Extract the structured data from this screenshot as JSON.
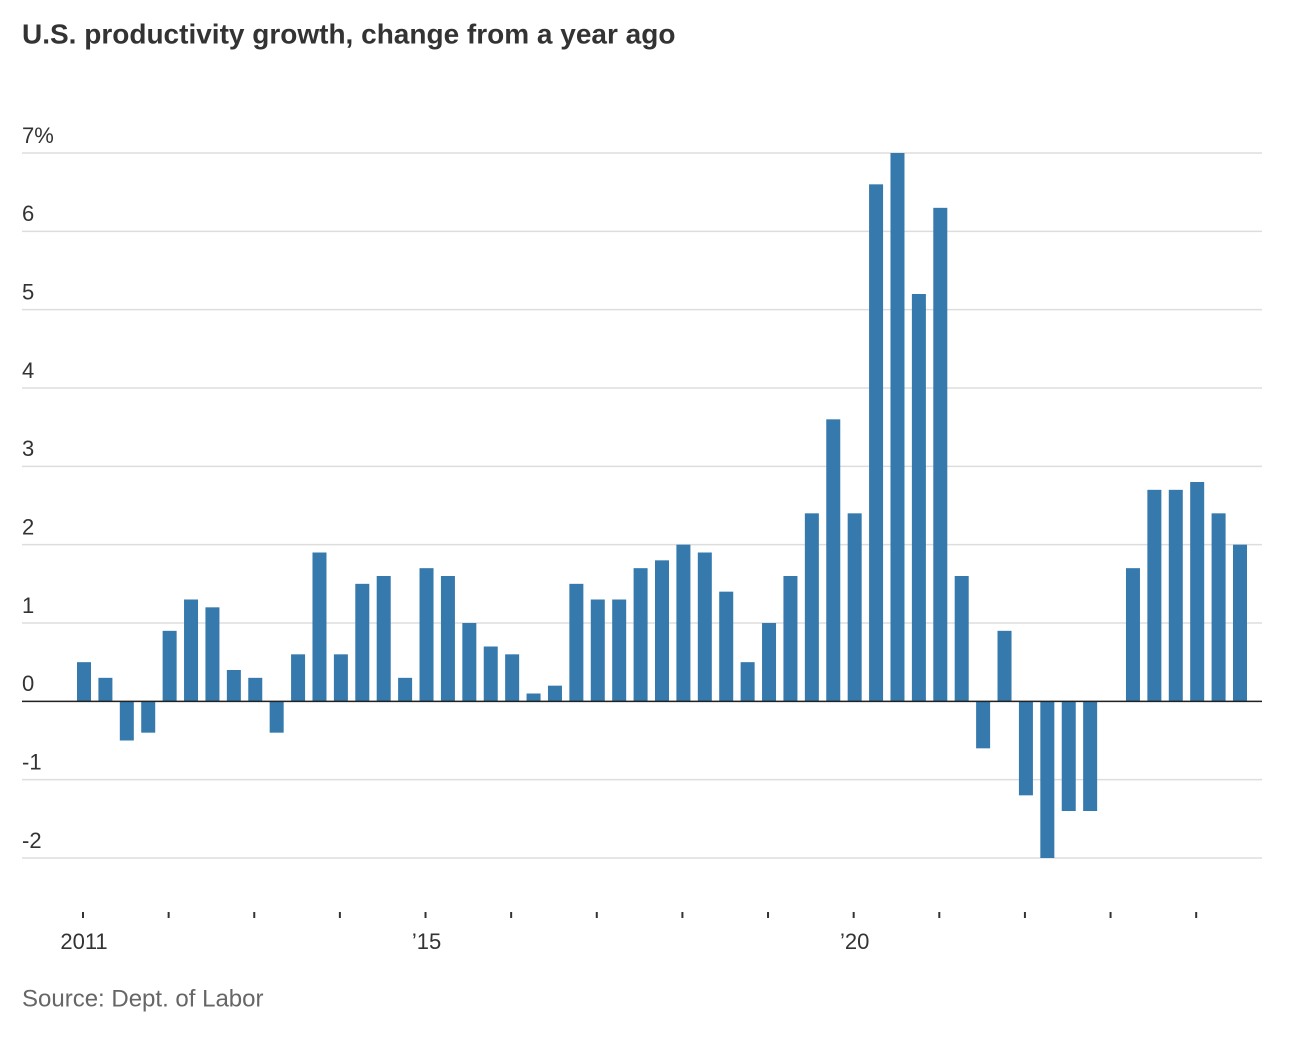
{
  "chart_data": {
    "type": "bar",
    "title": "U.S. productivity growth, change from a year ago",
    "source": "Source: Dept. of Labor",
    "categories": [
      "2011",
      null,
      null,
      null,
      null,
      null,
      null,
      null,
      null,
      null,
      null,
      null,
      null,
      null,
      null,
      null,
      "’15",
      null,
      null,
      null,
      null,
      null,
      null,
      null,
      null,
      null,
      null,
      null,
      null,
      null,
      null,
      null,
      null,
      null,
      null,
      null,
      "’20",
      null,
      null,
      null,
      null,
      null,
      null,
      null,
      null,
      null,
      null,
      null,
      null,
      null,
      null,
      null,
      null,
      null,
      null
    ],
    "values": [
      0.5,
      0.3,
      -0.5,
      -0.4,
      0.9,
      1.3,
      1.2,
      0.4,
      0.3,
      -0.4,
      0.6,
      1.9,
      0.6,
      1.5,
      1.6,
      0.3,
      1.7,
      1.6,
      1.0,
      0.7,
      0.6,
      0.1,
      0.2,
      1.5,
      1.3,
      1.3,
      1.7,
      1.8,
      2.0,
      1.9,
      1.4,
      0.5,
      1.0,
      1.6,
      2.4,
      3.6,
      2.4,
      6.6,
      7.0,
      5.2,
      6.3,
      1.6,
      -0.6,
      0.9,
      -1.2,
      -2.0,
      -1.4,
      -1.4,
      0,
      1.7,
      2.7,
      2.7,
      2.8,
      2.4,
      2.0
    ],
    "color": "#3579ad",
    "ylim": [
      -2,
      7
    ],
    "yticks": [
      -2,
      -1,
      0,
      1,
      2,
      3,
      4,
      5,
      {
        "value": 7,
        "label": "7%"
      },
      6
    ],
    "grid": true
  }
}
